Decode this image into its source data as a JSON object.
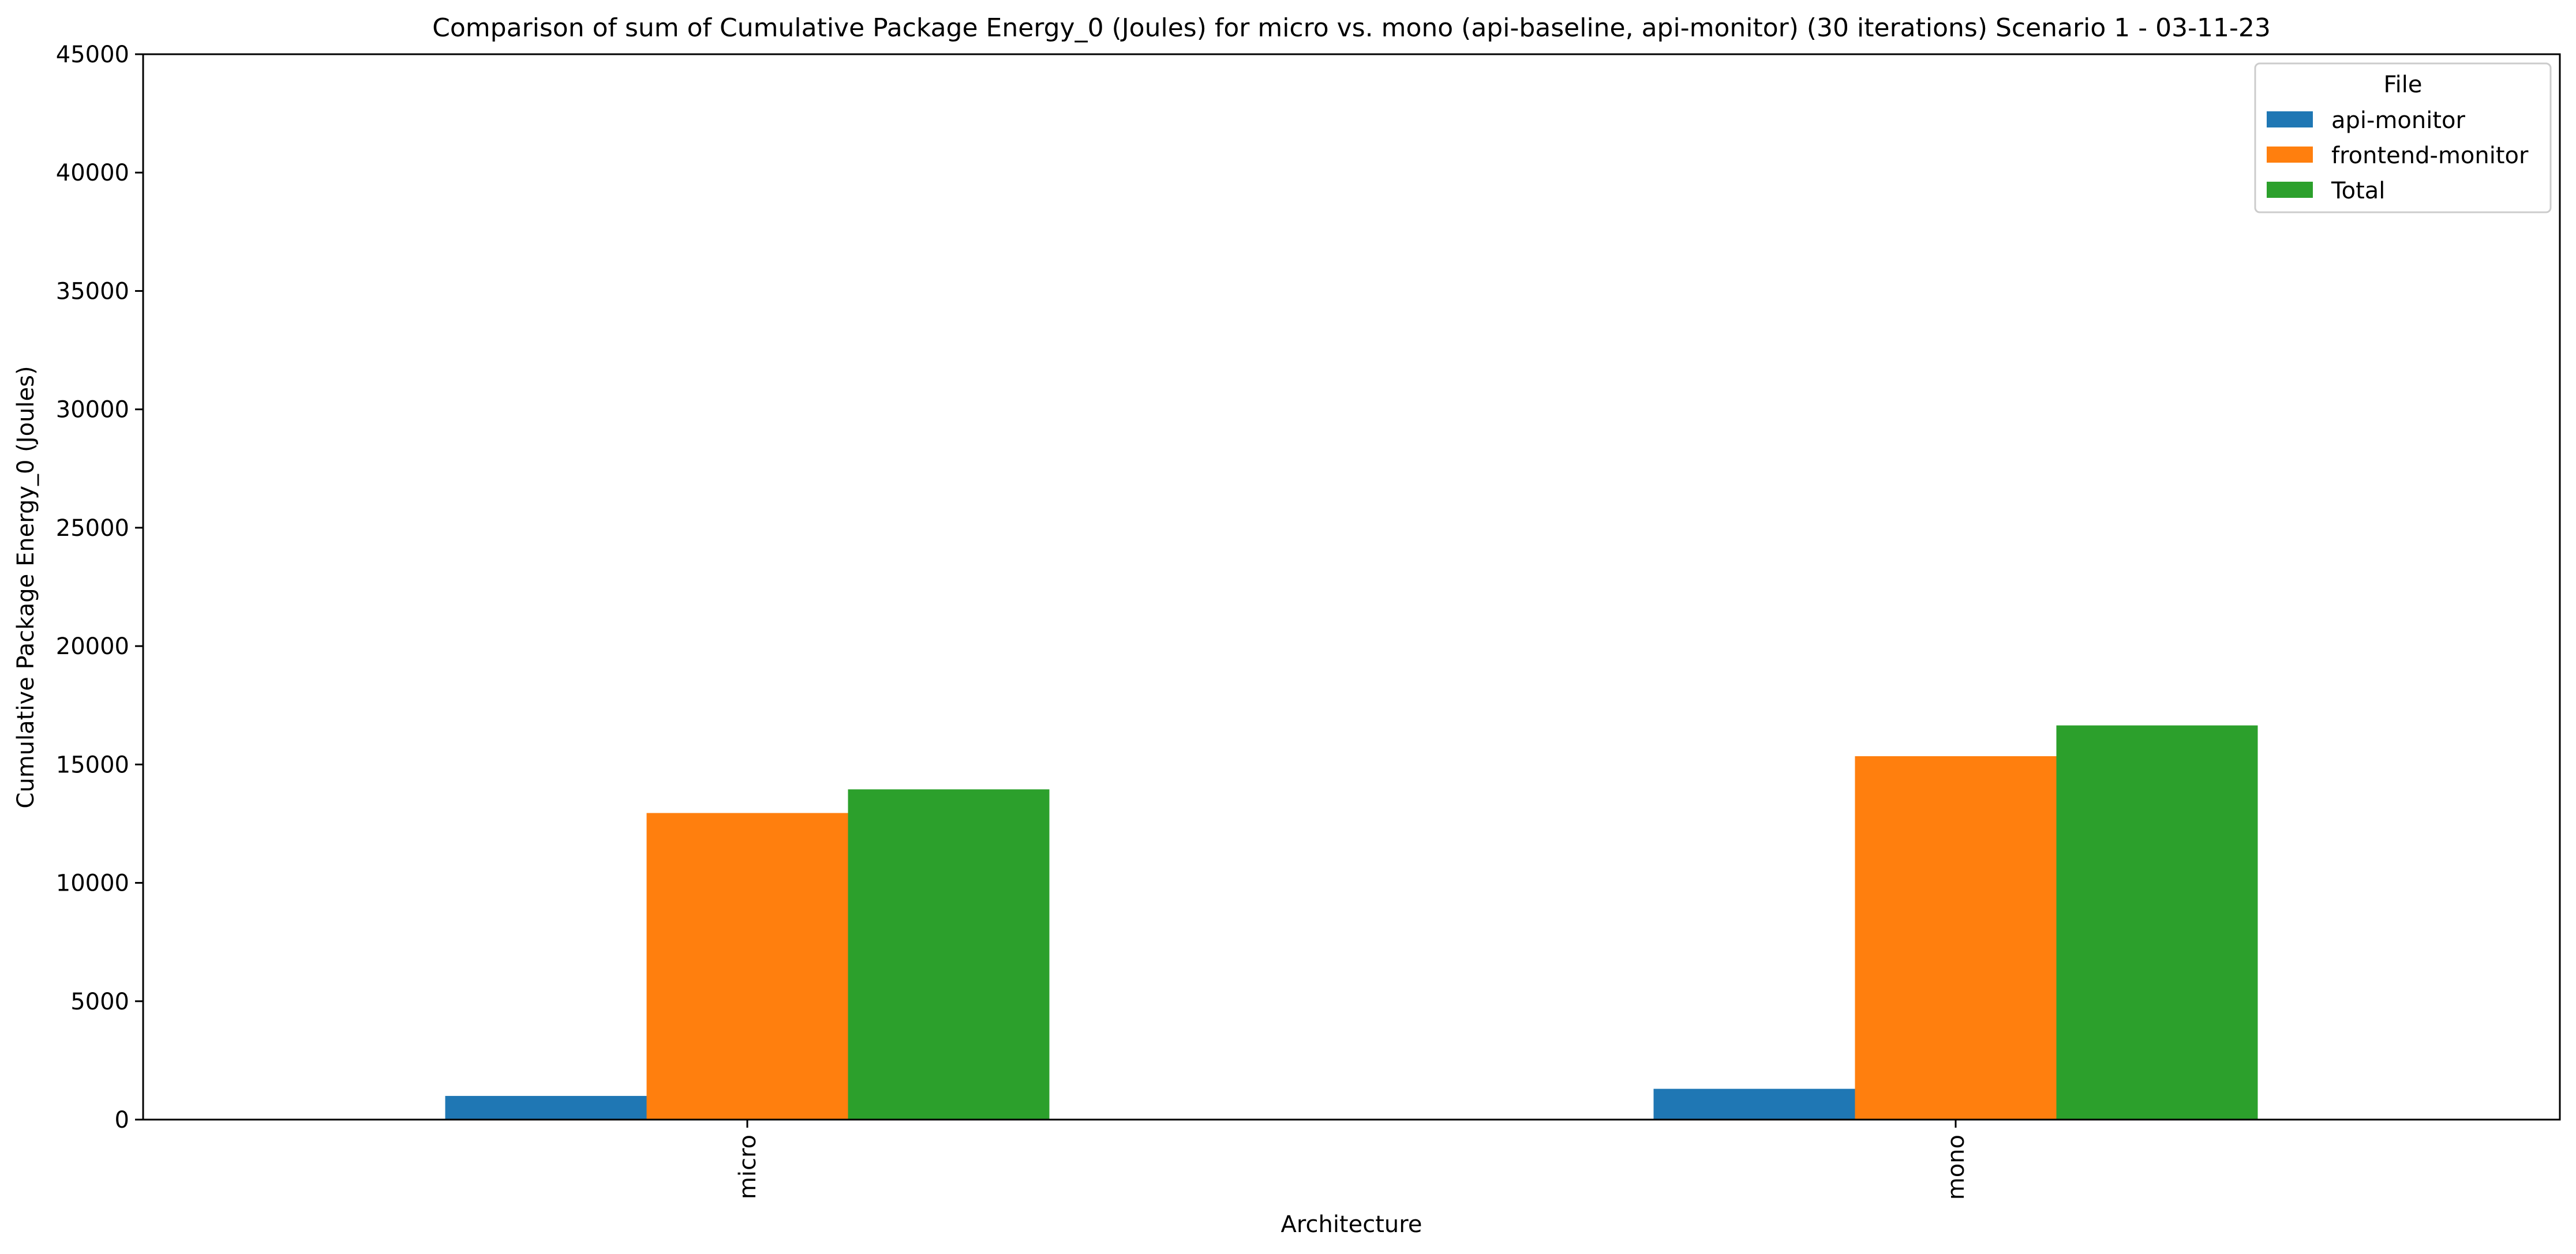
{
  "chart_data": {
    "type": "bar",
    "title": "Comparison of sum of Cumulative Package Energy_0 (Joules) for micro vs. mono (api-baseline, api-monitor) (30 iterations) Scenario 1 - 03-11-23",
    "xlabel": "Architecture",
    "ylabel": "Cumulative Package Energy_0 (Joules)",
    "categories": [
      "micro",
      "mono"
    ],
    "ylim": [
      0,
      45000
    ],
    "yticks": [
      0,
      5000,
      10000,
      15000,
      20000,
      25000,
      30000,
      35000,
      40000,
      45000
    ],
    "grid": false,
    "legend": {
      "title": "File",
      "placement": "top-right"
    },
    "series": [
      {
        "name": "api-monitor",
        "color": "#1f77b4",
        "values": [
          1000,
          1300
        ]
      },
      {
        "name": "frontend-monitor",
        "color": "#ff7f0e",
        "values": [
          12950,
          15350
        ]
      },
      {
        "name": "Total",
        "color": "#2ca02c",
        "values": [
          13950,
          16650
        ]
      }
    ]
  }
}
